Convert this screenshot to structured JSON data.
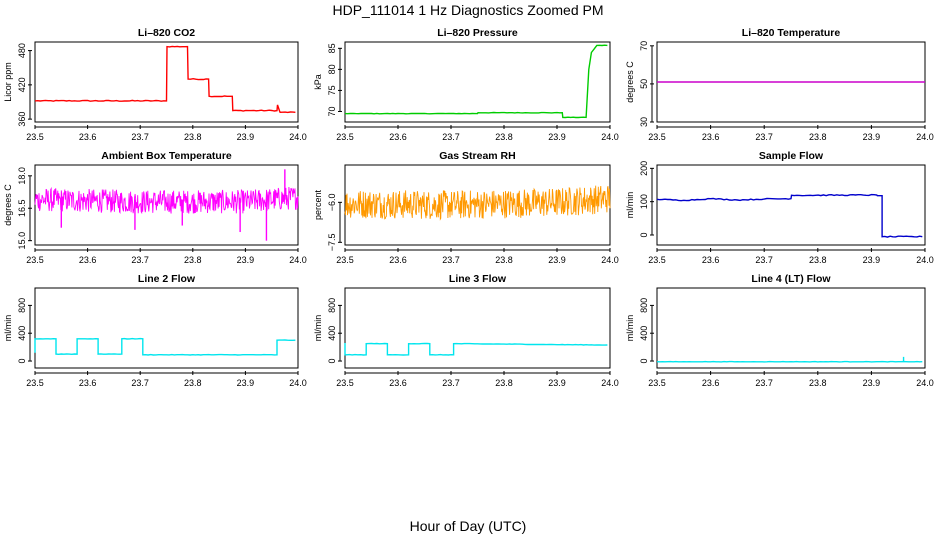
{
  "figure": {
    "title": "HDP_111014  1 Hz Diagnostics Zoomed PM",
    "xlabel": "Hour of Day (UTC)"
  },
  "chart_data": [
    {
      "type": "line",
      "title": "Li–820 CO2",
      "xlabel": "",
      "ylabel": "Licor ppm",
      "color": "#ff0000",
      "xlim": [
        23.5,
        24.0
      ],
      "ylim": [
        355,
        495
      ],
      "xticks": [
        23.5,
        23.6,
        23.7,
        23.8,
        23.9,
        24.0
      ],
      "xticklabels": [
        "23.5",
        "23.6",
        "23.7",
        "23.8",
        "23.9",
        "24.0"
      ],
      "yticks": [
        360,
        420,
        480
      ],
      "yticklabels": [
        "360",
        "420",
        "480"
      ],
      "series": [
        {
          "name": "Li-820 CO2",
          "style": "step",
          "noise": 0.8,
          "spikes": [],
          "x": [
            23.5,
            23.75,
            23.751,
            23.79,
            23.791,
            23.83,
            23.831,
            23.875,
            23.876,
            23.96,
            23.961,
            23.965,
            23.966,
            23.995
          ],
          "y": [
            392,
            392,
            487,
            487,
            430,
            430,
            400,
            400,
            375,
            375,
            385,
            374,
            372,
            372
          ]
        }
      ]
    },
    {
      "type": "line",
      "title": "Li–820 Pressure",
      "xlabel": "",
      "ylabel": "kPa",
      "color": "#00cc00",
      "xlim": [
        23.5,
        24.0
      ],
      "ylim": [
        67.5,
        86.5
      ],
      "xticks": [
        23.5,
        23.6,
        23.7,
        23.8,
        23.9,
        24.0
      ],
      "xticklabels": [
        "23.5",
        "23.6",
        "23.7",
        "23.8",
        "23.9",
        "24.0"
      ],
      "yticks": [
        70,
        75,
        80,
        85
      ],
      "yticklabels": [
        "70",
        "75",
        "80",
        "85"
      ],
      "series": [
        {
          "name": "Li-820 Pressure",
          "style": "step",
          "noise": 0.05,
          "spikes": [],
          "x": [
            23.5,
            23.75,
            23.751,
            23.91,
            23.911,
            23.955,
            23.96,
            23.965,
            23.975,
            23.995
          ],
          "y": [
            69.5,
            69.5,
            69.7,
            69.7,
            68.6,
            68.6,
            80,
            84,
            85.7,
            85.7
          ]
        }
      ]
    },
    {
      "type": "line",
      "title": "Li–820 Temperature",
      "xlabel": "",
      "ylabel": "degrees C",
      "color": "#cc00cc",
      "xlim": [
        23.5,
        24.0
      ],
      "ylim": [
        30,
        72
      ],
      "xticks": [
        23.5,
        23.6,
        23.7,
        23.8,
        23.9,
        24.0
      ],
      "xticklabels": [
        "23.5",
        "23.6",
        "23.7",
        "23.8",
        "23.9",
        "24.0"
      ],
      "yticks": [
        30,
        50,
        70
      ],
      "yticklabels": [
        "30",
        "50",
        "70"
      ],
      "series": [
        {
          "name": "Li-820 Temperature",
          "style": "step",
          "noise": 0,
          "spikes": [],
          "x": [
            23.5,
            24.0
          ],
          "y": [
            51,
            51
          ]
        }
      ]
    },
    {
      "type": "line",
      "title": "Ambient Box Temperature",
      "xlabel": "",
      "ylabel": "degrees C",
      "color": "#ff00ff",
      "xlim": [
        23.5,
        24.0
      ],
      "ylim": [
        14.8,
        18.5
      ],
      "xticks": [
        23.5,
        23.6,
        23.7,
        23.8,
        23.9,
        24.0
      ],
      "xticklabels": [
        "23.5",
        "23.6",
        "23.7",
        "23.8",
        "23.9",
        "24.0"
      ],
      "yticks": [
        15.0,
        16.5,
        18.0
      ],
      "yticklabels": [
        "15.0",
        "16.5",
        "18.0"
      ],
      "series": [
        {
          "name": "Ambient Box Temperature",
          "style": "noise",
          "noise": 0.55,
          "spikes": [
            [
              23.55,
              15.6
            ],
            [
              23.69,
              15.5
            ],
            [
              23.78,
              15.7
            ],
            [
              23.89,
              15.4
            ],
            [
              23.94,
              15.0
            ],
            [
              23.975,
              18.3
            ]
          ],
          "x": [
            23.5,
            23.7,
            23.9,
            24.0
          ],
          "y": [
            16.9,
            16.8,
            16.8,
            17.0
          ]
        }
      ]
    },
    {
      "type": "line",
      "title": "Gas Stream RH",
      "xlabel": "",
      "ylabel": "percent",
      "color": "#ff9900",
      "xlim": [
        23.5,
        24.0
      ],
      "ylim": [
        -7.6,
        -4.6
      ],
      "xticks": [
        23.5,
        23.6,
        23.7,
        23.8,
        23.9,
        24.0
      ],
      "xticklabels": [
        "23.5",
        "23.6",
        "23.7",
        "23.8",
        "23.9",
        "24.0"
      ],
      "yticks": [
        -7.5,
        -6.0
      ],
      "yticklabels": [
        "−7.5",
        "−6.0"
      ],
      "series": [
        {
          "name": "Gas Stream RH",
          "style": "noise",
          "noise": 0.55,
          "spikes": [],
          "x": [
            23.5,
            23.7,
            23.9,
            24.0
          ],
          "y": [
            -6.05,
            -6.1,
            -6.0,
            -5.85
          ]
        }
      ]
    },
    {
      "type": "line",
      "title": "Sample Flow",
      "xlabel": "",
      "ylabel": "ml/min",
      "color": "#0000cc",
      "xlim": [
        23.5,
        24.0
      ],
      "ylim": [
        -30,
        210
      ],
      "xticks": [
        23.5,
        23.6,
        23.7,
        23.8,
        23.9,
        24.0
      ],
      "xticklabels": [
        "23.5",
        "23.6",
        "23.7",
        "23.8",
        "23.9",
        "24.0"
      ],
      "yticks": [
        0,
        100,
        200
      ],
      "yticklabels": [
        "0",
        "100",
        "200"
      ],
      "series": [
        {
          "name": "Sample Flow",
          "style": "step",
          "noise": 1.5,
          "spikes": [],
          "x": [
            23.5,
            23.55,
            23.6,
            23.65,
            23.7,
            23.75,
            23.751,
            23.91,
            23.911,
            23.92,
            23.92,
            23.995
          ],
          "y": [
            107,
            104,
            109,
            105,
            108,
            109,
            119,
            120,
            118,
            118,
            -5,
            -5
          ]
        }
      ]
    },
    {
      "type": "line",
      "title": "Line 2 Flow",
      "xlabel": "",
      "ylabel": "ml/min",
      "color": "#00e5ee",
      "xlim": [
        23.5,
        24.0
      ],
      "ylim": [
        -100,
        1050
      ],
      "xticks": [
        23.5,
        23.6,
        23.7,
        23.8,
        23.9,
        24.0
      ],
      "xticklabels": [
        "23.5",
        "23.6",
        "23.7",
        "23.8",
        "23.9",
        "24.0"
      ],
      "yticks": [
        0,
        400,
        800
      ],
      "yticklabels": [
        "0",
        "400",
        "800"
      ],
      "series": [
        {
          "name": "Line 2 Flow",
          "style": "step",
          "noise": 3,
          "spikes": [],
          "x": [
            23.5,
            23.5,
            23.54,
            23.54,
            23.58,
            23.58,
            23.62,
            23.62,
            23.665,
            23.665,
            23.705,
            23.705,
            23.96,
            23.96,
            23.995
          ],
          "y": [
            120,
            320,
            320,
            100,
            100,
            320,
            320,
            100,
            100,
            320,
            320,
            90,
            90,
            300,
            300
          ]
        }
      ]
    },
    {
      "type": "line",
      "title": "Line 3 Flow",
      "xlabel": "",
      "ylabel": "ml/min",
      "color": "#00e5ee",
      "xlim": [
        23.5,
        24.0
      ],
      "ylim": [
        -100,
        1050
      ],
      "xticks": [
        23.5,
        23.6,
        23.7,
        23.8,
        23.9,
        24.0
      ],
      "xticklabels": [
        "23.5",
        "23.6",
        "23.7",
        "23.8",
        "23.9",
        "24.0"
      ],
      "yticks": [
        0,
        400,
        800
      ],
      "yticklabels": [
        "0",
        "400",
        "800"
      ],
      "series": [
        {
          "name": "Line 3 Flow",
          "style": "step",
          "noise": 3,
          "spikes": [],
          "x": [
            23.5,
            23.5,
            23.503,
            23.503,
            23.54,
            23.54,
            23.58,
            23.58,
            23.62,
            23.62,
            23.66,
            23.66,
            23.705,
            23.705,
            23.995
          ],
          "y": [
            260,
            90,
            90,
            90,
            90,
            250,
            250,
            90,
            90,
            250,
            250,
            90,
            90,
            250,
            230
          ]
        }
      ]
    },
    {
      "type": "line",
      "title": "Line 4 (LT) Flow",
      "xlabel": "",
      "ylabel": "ml/min",
      "color": "#00e5ee",
      "xlim": [
        23.5,
        24.0
      ],
      "ylim": [
        -100,
        1050
      ],
      "xticks": [
        23.5,
        23.6,
        23.7,
        23.8,
        23.9,
        24.0
      ],
      "xticklabels": [
        "23.5",
        "23.6",
        "23.7",
        "23.8",
        "23.9",
        "24.0"
      ],
      "yticks": [
        0,
        400,
        800
      ],
      "yticklabels": [
        "0",
        "400",
        "800"
      ],
      "series": [
        {
          "name": "Line 4 (LT) Flow",
          "style": "step",
          "noise": 2,
          "spikes": [
            [
              23.96,
              60
            ]
          ],
          "x": [
            23.5,
            23.995
          ],
          "y": [
            -10,
            -10
          ]
        }
      ]
    }
  ]
}
